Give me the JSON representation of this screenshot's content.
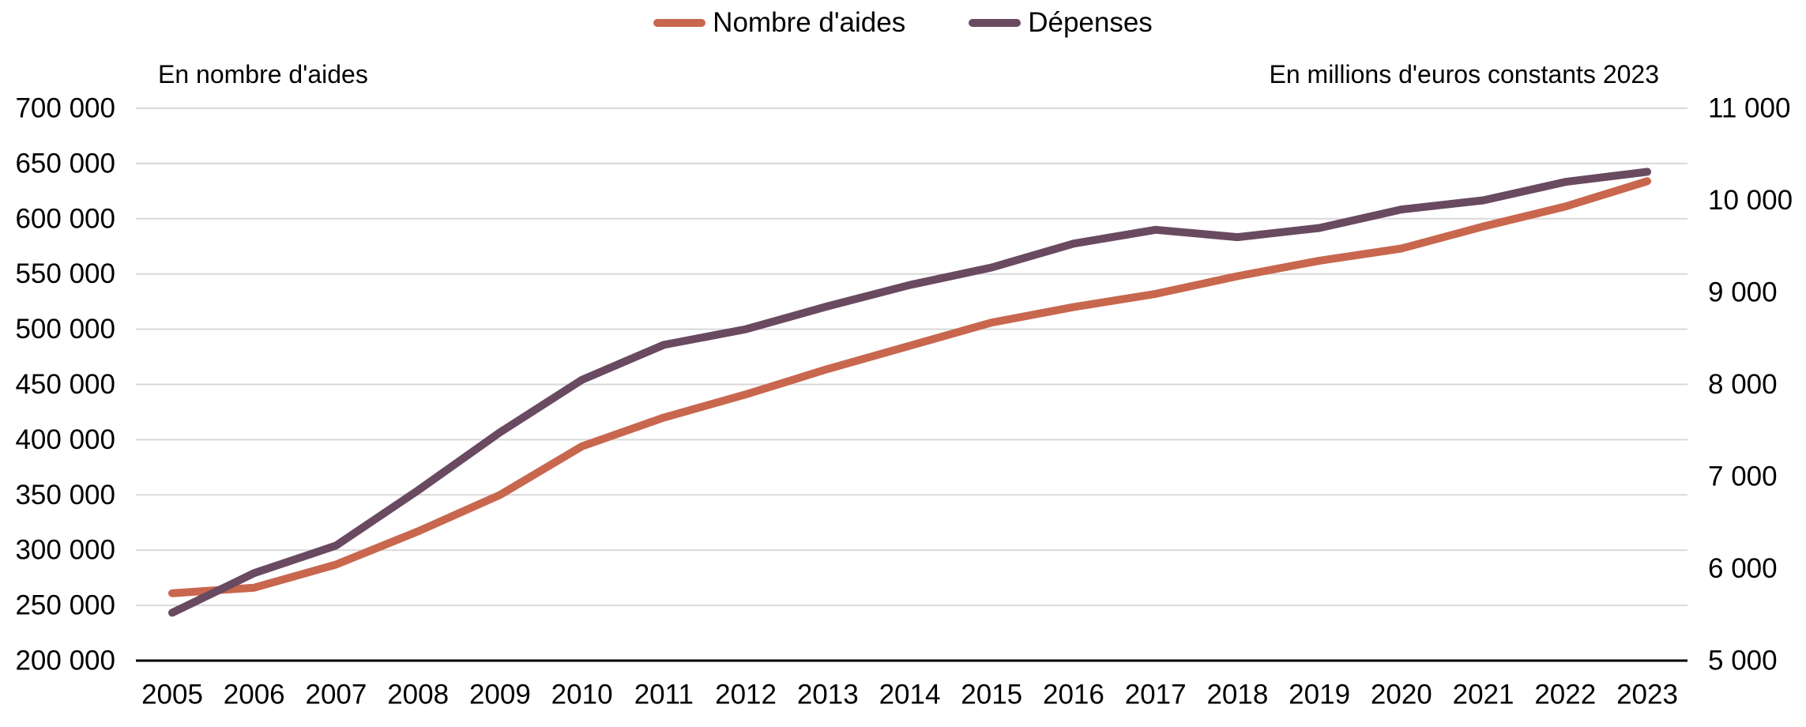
{
  "legend": [
    {
      "label": "Nombre d'aides",
      "color": "#C8674E"
    },
    {
      "label": "Dépenses",
      "color": "#694A60"
    }
  ],
  "left_axis_title": "En nombre d'aides",
  "right_axis_title": "En millions d'euros constants 2023",
  "colors": {
    "series_nombre": "#C8674E",
    "series_depenses": "#694A60",
    "gridline": "#D9D9D9",
    "axis_line": "#000000",
    "text": "#000000"
  },
  "chart_data": {
    "type": "line",
    "title": "",
    "x": [
      2005,
      2006,
      2007,
      2008,
      2009,
      2010,
      2011,
      2012,
      2013,
      2014,
      2015,
      2016,
      2017,
      2018,
      2019,
      2020,
      2021,
      2022,
      2023
    ],
    "x_tick_labels": [
      "2005",
      "2006",
      "2007",
      "2008",
      "2009",
      "2010",
      "2011",
      "2012",
      "2013",
      "2014",
      "2015",
      "2016",
      "2017",
      "2018",
      "2019",
      "2020",
      "2021",
      "2022",
      "2023"
    ],
    "series": [
      {
        "name": "Nombre d'aides",
        "axis": "left",
        "color": "#C8674E",
        "values": [
          261000,
          266000,
          287000,
          317000,
          350000,
          394000,
          420000,
          441000,
          464000,
          485000,
          506000,
          520000,
          532000,
          548000,
          562000,
          573000,
          593000,
          611000,
          634000
        ]
      },
      {
        "name": "Dépenses",
        "axis": "right",
        "color": "#694A60",
        "values": [
          5520,
          5950,
          6250,
          6850,
          7480,
          8050,
          8430,
          8600,
          8850,
          9080,
          9270,
          9530,
          9680,
          9600,
          9700,
          9900,
          10000,
          10200,
          10310
        ]
      }
    ],
    "left_axis": {
      "label": "En nombre d'aides",
      "min": 200000,
      "max": 700000,
      "step": 50000,
      "tick_labels": [
        "200 000",
        "250 000",
        "300 000",
        "350 000",
        "400 000",
        "450 000",
        "500 000",
        "550 000",
        "600 000",
        "650 000",
        "700 000"
      ]
    },
    "right_axis": {
      "label": "En millions d'euros constants 2023",
      "min": 5000,
      "max": 11000,
      "step": 1000,
      "tick_labels": [
        "5 000",
        "6 000",
        "7 000",
        "8 000",
        "9 000",
        "10 000",
        "11 000"
      ]
    },
    "grid": true,
    "legend_position": "top-center"
  }
}
